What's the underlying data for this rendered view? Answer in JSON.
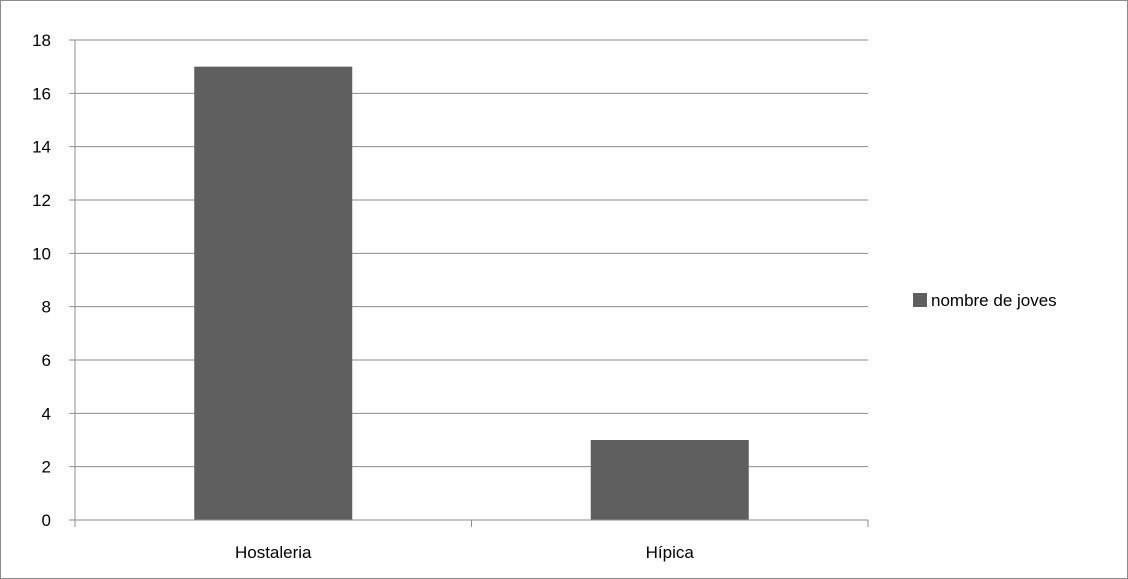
{
  "chart_data": {
    "type": "bar",
    "categories": [
      "Hostaleria",
      "Hípica"
    ],
    "series": [
      {
        "name": "nombre de joves",
        "values": [
          17,
          3
        ],
        "color": "#5f5f5f"
      }
    ],
    "yticks": [
      "0",
      "2",
      "4",
      "6",
      "8",
      "10",
      "12",
      "14",
      "16",
      "18"
    ],
    "ylim": [
      0,
      18
    ],
    "grid": true,
    "gridline_color": "#8c8c8c",
    "axis_color": "#8c8c8c",
    "legend_position": "right"
  }
}
